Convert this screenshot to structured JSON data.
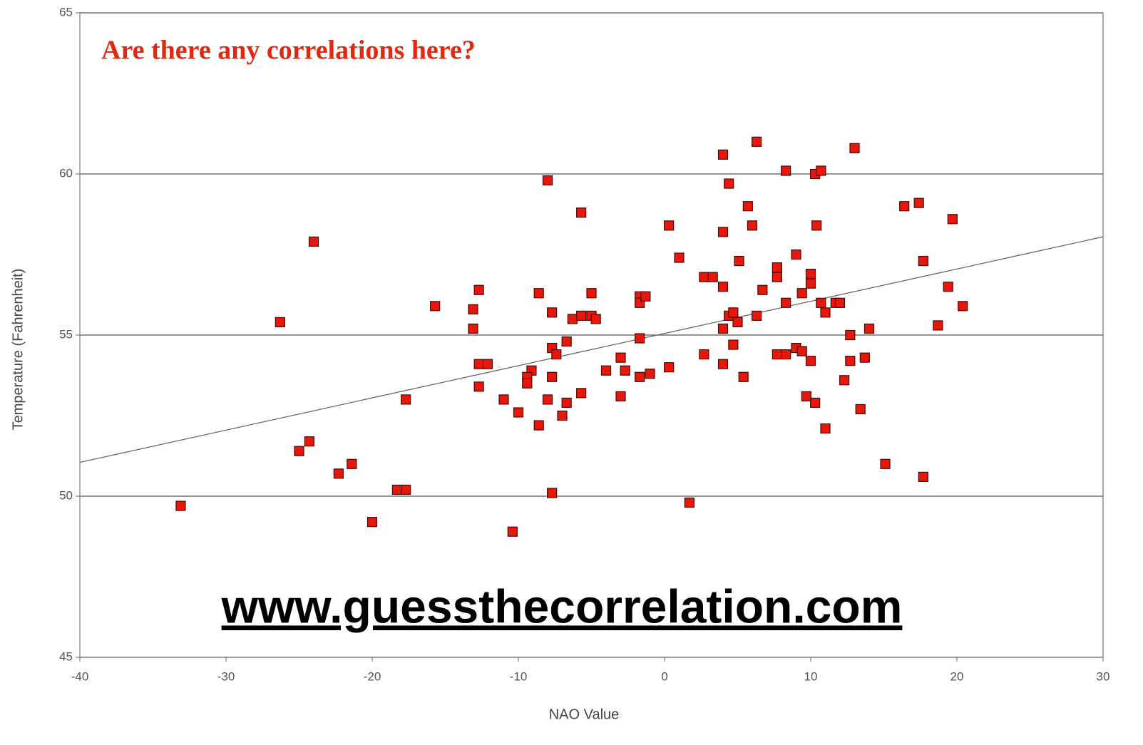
{
  "chart_data": {
    "type": "scatter",
    "title": "Are there any correlations here?",
    "annotation": "www.guessthecorrelation.com",
    "x_label": "NAO Value",
    "y_label": "Temperature (Fahrenheit)",
    "xlim": [
      -40,
      30
    ],
    "ylim": [
      45,
      65
    ],
    "xticks": [
      -40,
      -30,
      -20,
      -10,
      0,
      10,
      20,
      30
    ],
    "yticks": [
      45,
      50,
      55,
      60,
      65
    ],
    "grid": true,
    "color": "#e8170b",
    "x": [
      -33.1,
      -26.3,
      -24.0,
      -25.0,
      -24.3,
      -22.3,
      -21.4,
      -20.0,
      -18.3,
      -17.7,
      -17.7,
      -15.7,
      -13.1,
      -13.1,
      -12.7,
      -12.7,
      -12.1,
      -12.7,
      -11.0,
      -10.0,
      -10.4,
      -9.1,
      -9.4,
      -9.4,
      -8.6,
      -8.6,
      -8.0,
      -8.0,
      -7.7,
      -7.7,
      -7.4,
      -7.7,
      -7.7,
      -7.0,
      -6.7,
      -6.7,
      -6.3,
      -5.7,
      -5.7,
      -5.7,
      -5.0,
      -5.0,
      -4.7,
      -4.0,
      -3.0,
      -3.0,
      -2.7,
      -1.7,
      -1.7,
      -1.3,
      -1.7,
      -1.7,
      -1.0,
      0.3,
      0.3,
      1.0,
      1.7,
      2.7,
      3.3,
      2.7,
      4.0,
      4.0,
      4.0,
      4.0,
      4.0,
      4.4,
      4.4,
      4.7,
      4.7,
      5.0,
      5.1,
      5.4,
      5.7,
      6.0,
      6.3,
      6.3,
      6.7,
      7.7,
      7.7,
      7.7,
      8.3,
      8.3,
      8.3,
      9.0,
      9.0,
      9.4,
      9.4,
      9.7,
      10.0,
      10.0,
      10.0,
      10.3,
      10.4,
      10.3,
      10.7,
      10.7,
      11.0,
      11.0,
      11.7,
      12.0,
      12.3,
      12.7,
      12.7,
      13.0,
      13.4,
      13.7,
      14.0,
      15.1,
      16.4,
      17.4,
      17.7,
      17.7,
      18.7,
      19.4,
      19.7,
      20.4
    ],
    "values": [
      49.7,
      55.4,
      57.9,
      51.4,
      51.7,
      50.7,
      51.0,
      49.2,
      50.2,
      50.2,
      53.0,
      55.9,
      55.8,
      55.2,
      56.4,
      54.1,
      54.1,
      53.4,
      53.0,
      52.6,
      48.9,
      53.9,
      53.7,
      53.5,
      56.3,
      52.2,
      59.8,
      53.0,
      55.7,
      54.6,
      54.4,
      53.7,
      50.1,
      52.5,
      52.9,
      54.8,
      55.5,
      58.8,
      55.6,
      53.2,
      56.3,
      55.6,
      55.5,
      53.9,
      54.3,
      53.1,
      53.9,
      56.2,
      56.0,
      56.2,
      54.9,
      53.7,
      53.8,
      58.4,
      54.0,
      57.4,
      49.8,
      56.8,
      56.8,
      54.4,
      60.6,
      58.2,
      56.5,
      55.2,
      54.1,
      59.7,
      55.6,
      55.7,
      54.7,
      55.4,
      57.3,
      53.7,
      59.0,
      58.4,
      61.0,
      55.6,
      56.4,
      57.1,
      56.8,
      54.4,
      60.1,
      56.0,
      54.4,
      57.5,
      54.6,
      56.3,
      54.5,
      53.1,
      56.9,
      56.6,
      54.2,
      60.0,
      58.4,
      52.9,
      60.1,
      56.0,
      55.7,
      52.1,
      56.0,
      56.0,
      53.6,
      55.0,
      54.2,
      60.8,
      52.7,
      54.3,
      55.2,
      51.0,
      59.0,
      59.1,
      57.3,
      50.6,
      55.3,
      56.5,
      58.6,
      55.9
    ],
    "trend_line": {
      "x": [
        -40,
        30
      ],
      "y": [
        51.05,
        58.05
      ]
    }
  }
}
